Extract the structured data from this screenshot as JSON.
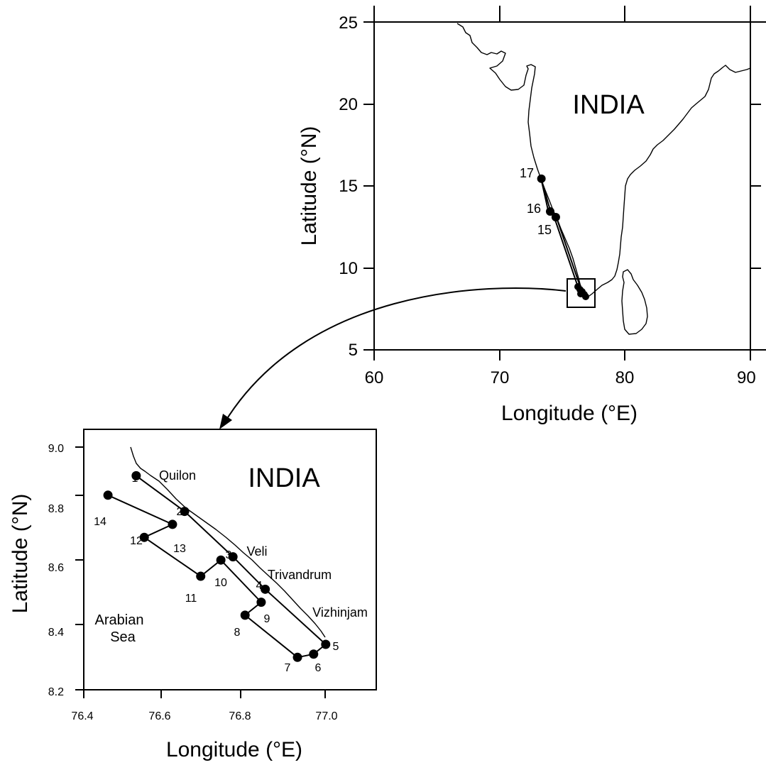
{
  "overview_map": {
    "x_ticks": [
      "60",
      "70",
      "80",
      "90"
    ],
    "y_ticks": [
      "5",
      "10",
      "15",
      "20",
      "25"
    ],
    "xlabel": "Longitude (°E)",
    "ylabel": "Latitude (°N)",
    "country_label": "INDIA",
    "stations": [
      {
        "id": "17",
        "lon": 73.35,
        "lat": 15.45
      },
      {
        "id": "16",
        "lon": 74.05,
        "lat": 13.45
      },
      {
        "id": "15",
        "lon": 74.5,
        "lat": 13.1
      }
    ],
    "inset_box": {
      "lon_min": 75.6,
      "lon_max": 77.5,
      "lat_min": 7.6,
      "lat_max": 9.4
    }
  },
  "detail_map": {
    "x_ticks": [
      "76.4",
      "76.6",
      "76.8",
      "77.0"
    ],
    "y_ticks": [
      "8.2",
      "8.4",
      "8.6",
      "8.8",
      "9.0"
    ],
    "xlabel": "Longitude (°E)",
    "ylabel": "Latitude (°N)",
    "country_label": "INDIA",
    "sea_label_line1": "Arabian",
    "sea_label_line2": "Sea",
    "places": {
      "quilon": "Quilon",
      "veli": "Veli",
      "trivandrum": "Trivandrum",
      "vizhinjam": "Vizhinjam"
    },
    "stations": [
      {
        "id": "1",
        "lon": 76.53,
        "lat": 8.86
      },
      {
        "id": "2",
        "lon": 76.65,
        "lat": 8.75
      },
      {
        "id": "3",
        "lon": 76.77,
        "lat": 8.61
      },
      {
        "id": "4",
        "lon": 76.85,
        "lat": 8.51
      },
      {
        "id": "5",
        "lon": 77.0,
        "lat": 8.34
      },
      {
        "id": "6",
        "lon": 76.97,
        "lat": 8.31
      },
      {
        "id": "7",
        "lon": 76.93,
        "lat": 8.3
      },
      {
        "id": "8",
        "lon": 76.8,
        "lat": 8.43
      },
      {
        "id": "9",
        "lon": 76.84,
        "lat": 8.47
      },
      {
        "id": "10",
        "lon": 76.74,
        "lat": 8.6
      },
      {
        "id": "11",
        "lon": 76.69,
        "lat": 8.55
      },
      {
        "id": "12",
        "lon": 76.55,
        "lat": 8.67
      },
      {
        "id": "13",
        "lon": 76.62,
        "lat": 8.71
      },
      {
        "id": "14",
        "lon": 76.46,
        "lat": 8.8
      }
    ]
  }
}
